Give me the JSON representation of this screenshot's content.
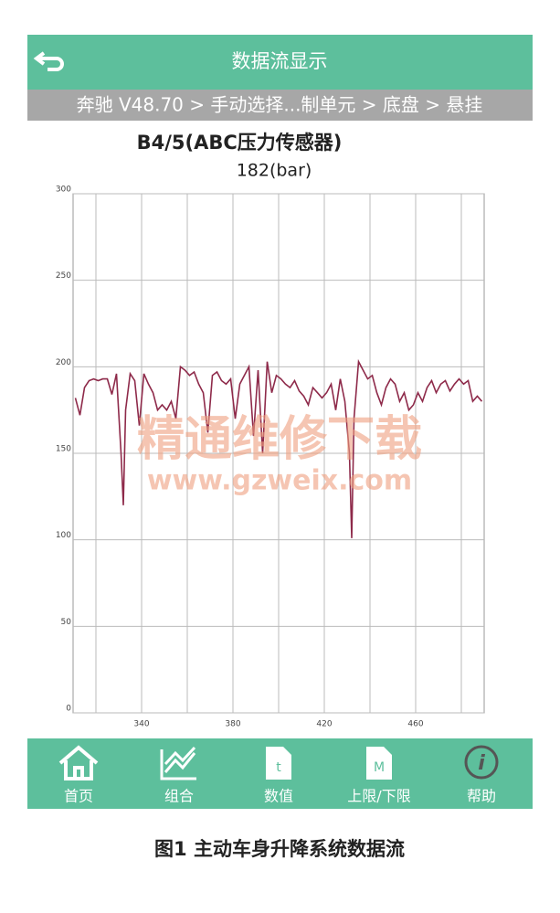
{
  "header": {
    "title": "数据流显示"
  },
  "breadcrumb": "奔驰 V48.70 > 手动选择...制单元 > 底盘 > 悬挂",
  "chart_data": {
    "type": "line",
    "title": "B4/5(ABC压力传感器)",
    "subtitle": "182(bar)",
    "color": "#8e2a4a",
    "x": [
      311,
      313,
      315,
      317,
      319,
      321,
      323,
      325,
      327,
      329,
      331,
      332,
      333,
      335,
      337,
      339,
      341,
      343,
      345,
      347,
      349,
      351,
      353,
      355,
      357,
      359,
      361,
      363,
      365,
      367,
      369,
      371,
      373,
      375,
      377,
      379,
      381,
      383,
      385,
      387,
      389,
      391,
      393,
      395,
      397,
      399,
      401,
      403,
      405,
      407,
      409,
      411,
      413,
      415,
      417,
      419,
      421,
      423,
      425,
      427,
      429,
      431,
      432,
      433,
      435,
      437,
      439,
      441,
      443,
      445,
      447,
      449,
      451,
      453,
      455,
      457,
      459,
      461,
      463,
      465,
      467,
      469,
      471,
      473,
      475,
      477,
      479,
      481,
      483,
      485,
      487,
      489
    ],
    "values": [
      182,
      172,
      188,
      192,
      193,
      192,
      193,
      193,
      184,
      196,
      150,
      120,
      175,
      196,
      192,
      166,
      196,
      190,
      185,
      175,
      178,
      175,
      180,
      170,
      200,
      198,
      195,
      197,
      190,
      185,
      162,
      195,
      197,
      192,
      190,
      193,
      170,
      190,
      195,
      200,
      160,
      198,
      150,
      203,
      185,
      195,
      193,
      190,
      188,
      192,
      186,
      183,
      178,
      188,
      185,
      182,
      185,
      190,
      175,
      193,
      180,
      150,
      101,
      170,
      203,
      198,
      193,
      195,
      185,
      178,
      188,
      193,
      190,
      180,
      185,
      175,
      178,
      185,
      180,
      188,
      192,
      185,
      190,
      192,
      186,
      190,
      193,
      190,
      192,
      180,
      183,
      180
    ],
    "xlim": [
      310,
      490
    ],
    "xticks": [
      340,
      380,
      420,
      460
    ],
    "xminor": [
      320,
      360,
      400,
      440,
      480
    ],
    "ylim": [
      0,
      300
    ],
    "yticks": [
      0,
      50,
      100,
      150,
      200,
      250,
      300
    ],
    "grid": true
  },
  "watermark": {
    "title": "精通维修下载",
    "url": "www.gzweix.com"
  },
  "nav": [
    "首页",
    "组合",
    "数值",
    "上限/下限",
    "帮助"
  ],
  "caption": "图1 主动车身升降系统数据流"
}
